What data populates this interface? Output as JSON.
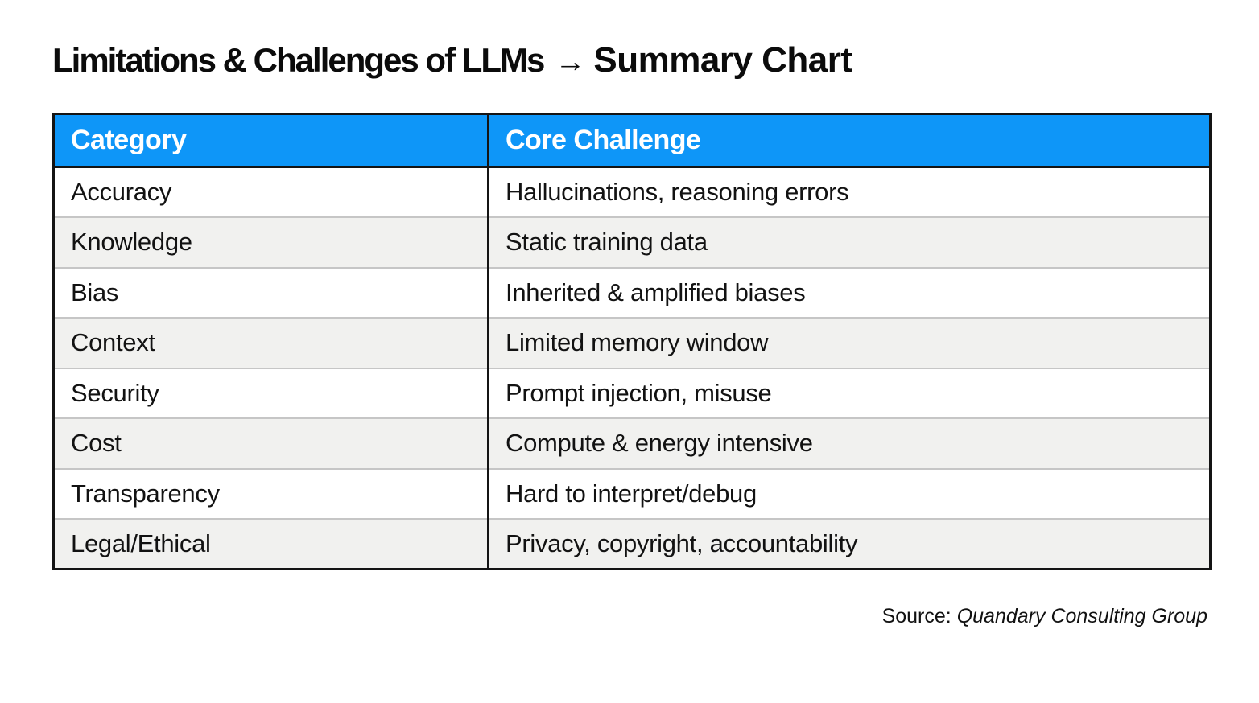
{
  "title": {
    "part1": "Limitations & Challenges of LLMs",
    "arrow": "→",
    "part2": "Summary Chart"
  },
  "chart_data": {
    "type": "table",
    "title": "Limitations & Challenges of LLMs → Summary Chart",
    "columns": [
      "Category",
      "Core Challenge"
    ],
    "rows": [
      {
        "category": "Accuracy",
        "challenge": "Hallucinations, reasoning errors"
      },
      {
        "category": "Knowledge",
        "challenge": "Static training data"
      },
      {
        "category": "Bias",
        "challenge": "Inherited & amplified biases"
      },
      {
        "category": "Context",
        "challenge": "Limited memory window"
      },
      {
        "category": "Security",
        "challenge": "Prompt injection, misuse"
      },
      {
        "category": "Cost",
        "challenge": "Compute & energy intensive"
      },
      {
        "category": "Transparency",
        "challenge": "Hard to interpret/debug"
      },
      {
        "category": "Legal/Ethical",
        "challenge": "Privacy, copyright, accountability"
      }
    ],
    "source": "Source: Quandary Consulting Group",
    "layout": {
      "grid": "off",
      "row_striping": "alternate",
      "header_position": "top"
    }
  },
  "footer": {
    "source_label": "Source:",
    "source_name": "Quandary Consulting Group"
  },
  "colors": {
    "header_bg": "#0e96f8",
    "header_text": "#ffffff",
    "row_alt_bg": "#f1f1ef",
    "table_border": "#141414",
    "row_separator": "#c6c6c6",
    "text": "#121212"
  }
}
